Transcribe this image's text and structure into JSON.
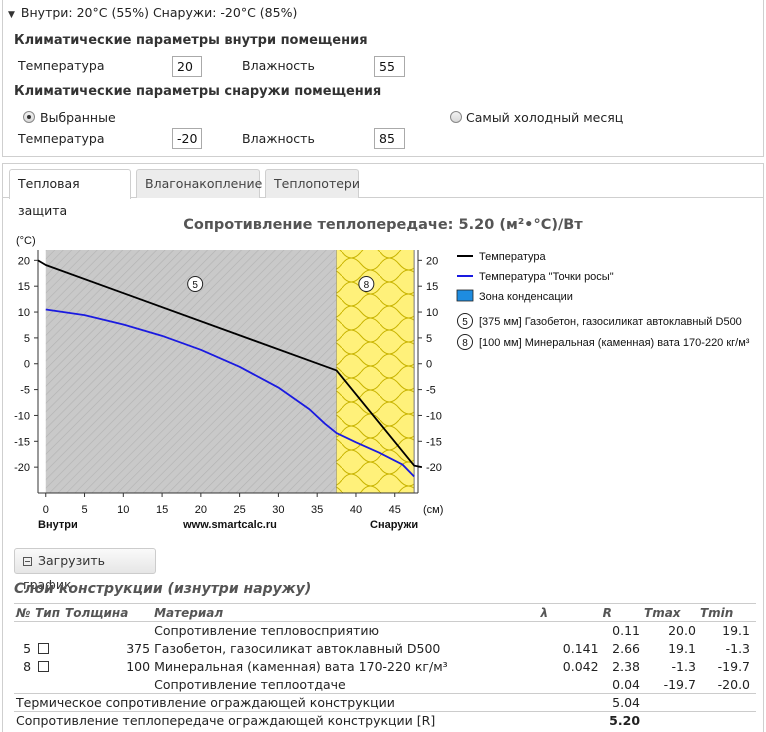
{
  "summary": {
    "collapse_label": "Внутри: 20°C (55%) Снаружи: -20°C (85%)"
  },
  "inside": {
    "title": "Климатические параметры внутри помещения",
    "temp_label": "Температура",
    "temp_value": "20",
    "hum_label": "Влажность",
    "hum_value": "55"
  },
  "outside": {
    "title": "Климатические параметры снаружи помещения",
    "radio_selected": "Выбранные",
    "radio_other": "Самый холодный месяц",
    "temp_label": "Температура",
    "temp_value": "-20",
    "hum_label": "Влажность",
    "hum_value": "85"
  },
  "tabs": [
    {
      "label": "Тепловая защита",
      "active": true
    },
    {
      "label": "Влагонакопление",
      "active": false
    },
    {
      "label": "Теплопотери",
      "active": false
    }
  ],
  "chart_title": "Сопротивление теплопередаче: 5.20 (м²•°C)/Вт",
  "chart_data": {
    "type": "line",
    "y_unit": "(°C)",
    "x_unit": "(см)",
    "xlim": [
      -1,
      48
    ],
    "ylim": [
      -25,
      22
    ],
    "x_ticks": [
      0,
      5,
      10,
      15,
      20,
      25,
      30,
      35,
      40,
      45
    ],
    "y_ticks": [
      20,
      15,
      10,
      5,
      0,
      -5,
      -10,
      -15,
      -20
    ],
    "x_left_label": "Внутри",
    "x_right_label": "Снаружи",
    "watermark": "www.smartcalc.ru",
    "layers": [
      {
        "id": "5",
        "from": 0,
        "to": 37.5,
        "fill": "#c8c8c8"
      },
      {
        "id": "8",
        "from": 37.5,
        "to": 47.5,
        "fill": "#fff17a"
      }
    ],
    "series": [
      {
        "name": "Температура",
        "color": "#000000",
        "x": [
          -1,
          0,
          37.5,
          47.5,
          48.5
        ],
        "y": [
          20,
          19.1,
          -1.3,
          -19.7,
          -20
        ]
      },
      {
        "name": "Температура \"Точки росы\"",
        "color": "#1a1ae0",
        "x": [
          0,
          5,
          10,
          15,
          20,
          25,
          30,
          34,
          36,
          37.5,
          40,
          43,
          46,
          47.5
        ],
        "y": [
          10.5,
          9.4,
          7.6,
          5.4,
          2.7,
          -0.6,
          -4.6,
          -8.8,
          -11.6,
          -13.4,
          -15.2,
          -17.2,
          -19.5,
          -21.8
        ]
      }
    ],
    "legend": [
      {
        "kind": "line",
        "color": "#000000",
        "label": "Температура"
      },
      {
        "kind": "line",
        "color": "#1a1ae0",
        "label": "Температура \"Точки росы\""
      },
      {
        "kind": "box",
        "color": "#1e8ce0",
        "label": "Зона конденсации"
      },
      {
        "kind": "marker",
        "id": "5",
        "label": "[375 мм] Газобетон, газосиликат автоклавный D500"
      },
      {
        "kind": "marker",
        "id": "8",
        "label": "[100 мм] Минеральная (каменная) вата 170-220 кг/м³"
      }
    ]
  },
  "download_button": "Загрузить график",
  "layers_title": "Слои конструкции (изнутри наружу)",
  "table": {
    "headers": [
      "№",
      "Тип",
      "Толщина",
      "Материал",
      "λ",
      "R",
      "Tmax",
      "Tmin"
    ],
    "rows": [
      {
        "no": "",
        "thick": "",
        "material": "Сопротивление тепловосприятию",
        "lambda": "",
        "r": "0.11",
        "tmax": "20.0",
        "tmin": "19.1"
      },
      {
        "no": "5",
        "thick": "375",
        "material": "Газобетон, газосиликат автоклавный D500",
        "lambda": "0.141",
        "r": "2.66",
        "tmax": "19.1",
        "tmin": "-1.3"
      },
      {
        "no": "8",
        "thick": "100",
        "material": "Минеральная (каменная) вата 170-220 кг/м³",
        "lambda": "0.042",
        "r": "2.38",
        "tmax": "-1.3",
        "tmin": "-19.7"
      },
      {
        "no": "",
        "thick": "",
        "material": "Сопротивление теплоотдаче",
        "lambda": "",
        "r": "0.04",
        "tmax": "-19.7",
        "tmin": "-20.0"
      }
    ],
    "thermal_label": "Термическое сопротивление ограждающей конструкции",
    "thermal_value": "5.04",
    "total_label": "Сопротивление теплопередаче ограждающей конструкции [R]",
    "total_value": "5.20"
  }
}
